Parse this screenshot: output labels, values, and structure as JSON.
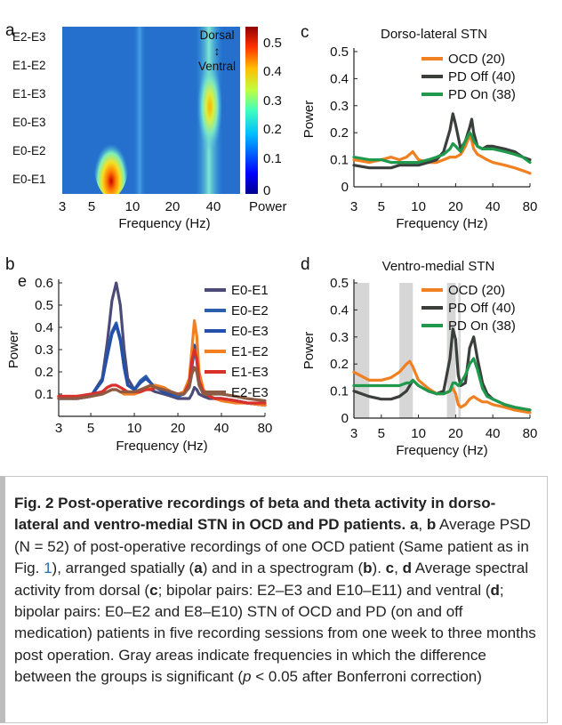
{
  "panels": {
    "a": {
      "letter": "a",
      "chart_data": {
        "type": "heatmap",
        "rows": [
          "E2-E3",
          "E1-E2",
          "E1-E3",
          "E0-E3",
          "E0-E2",
          "E0-E1"
        ],
        "row_values_at_peaks": {
          "theta_7Hz": [
            0.05,
            0.05,
            0.08,
            0.22,
            0.42,
            0.6
          ],
          "beta_27Hz": [
            0.2,
            0.28,
            0.45,
            0.2,
            0.15,
            0.12
          ]
        },
        "xlabel": "Frequency (Hz)",
        "xticks": [
          "3",
          "5",
          "10",
          "20",
          "40"
        ],
        "x_scale": "log",
        "colorbar_ticks": [
          "0.5",
          "0.4",
          "0.3",
          "0.2",
          "0.1",
          "0"
        ],
        "colorbar_label": "Power",
        "colorbar_range": [
          0,
          0.58
        ],
        "annotation_top": "Dorsal",
        "annotation_arrow": "↕",
        "annotation_bottom": "Ventral"
      }
    },
    "b": {
      "letter": "b",
      "extra_label": "e",
      "chart_data": {
        "type": "line",
        "x_scale": "log",
        "xlim": [
          3,
          80
        ],
        "ylim": [
          0,
          0.6
        ],
        "xlabel": "Frequency (Hz)",
        "ylabel": "Power",
        "xticks": [
          "3",
          "5",
          "10",
          "20",
          "40",
          "80"
        ],
        "yticks": [
          "0.1",
          "0.2",
          "0.3",
          "0.4",
          "0.5",
          "0.6"
        ],
        "x": [
          3,
          4,
          5,
          6,
          6.5,
          7,
          7.5,
          8,
          8.5,
          9,
          10,
          11,
          12,
          13,
          14,
          16,
          18,
          20,
          22,
          24,
          25,
          26,
          27,
          28,
          30,
          33,
          36,
          40,
          50,
          60,
          80
        ],
        "series": [
          {
            "name": "E0-E1",
            "color": "#4b4a78",
            "values": [
              0.09,
              0.08,
              0.09,
              0.17,
              0.33,
              0.52,
              0.6,
              0.5,
              0.3,
              0.17,
              0.12,
              0.11,
              0.13,
              0.12,
              0.11,
              0.1,
              0.09,
              0.08,
              0.08,
              0.08,
              0.1,
              0.13,
              0.12,
              0.1,
              0.09,
              0.08,
              0.08,
              0.08,
              0.07,
              0.06,
              0.05
            ]
          },
          {
            "name": "E0-E2",
            "color": "#2b5fae",
            "values": [
              0.08,
              0.08,
              0.09,
              0.16,
              0.28,
              0.38,
              0.42,
              0.35,
              0.22,
              0.14,
              0.12,
              0.16,
              0.18,
              0.15,
              0.13,
              0.11,
              0.1,
              0.09,
              0.1,
              0.14,
              0.22,
              0.3,
              0.25,
              0.16,
              0.11,
              0.09,
              0.08,
              0.08,
              0.07,
              0.06,
              0.05
            ]
          },
          {
            "name": "E0-E3",
            "color": "#2350a8",
            "values": [
              0.08,
              0.08,
              0.09,
              0.16,
              0.27,
              0.37,
              0.41,
              0.34,
              0.22,
              0.14,
              0.12,
              0.15,
              0.17,
              0.15,
              0.13,
              0.11,
              0.1,
              0.1,
              0.1,
              0.16,
              0.26,
              0.32,
              0.27,
              0.17,
              0.11,
              0.09,
              0.08,
              0.08,
              0.07,
              0.06,
              0.05
            ]
          },
          {
            "name": "E1-E2",
            "color": "#f08021",
            "values": [
              0.09,
              0.09,
              0.09,
              0.1,
              0.11,
              0.12,
              0.12,
              0.11,
              0.1,
              0.1,
              0.1,
              0.11,
              0.12,
              0.13,
              0.14,
              0.13,
              0.11,
              0.1,
              0.11,
              0.17,
              0.3,
              0.43,
              0.36,
              0.2,
              0.12,
              0.09,
              0.08,
              0.07,
              0.06,
              0.06,
              0.05
            ]
          },
          {
            "name": "E1-E3",
            "color": "#d9302b",
            "values": [
              0.09,
              0.09,
              0.1,
              0.11,
              0.13,
              0.14,
              0.14,
              0.13,
              0.12,
              0.11,
              0.11,
              0.11,
              0.12,
              0.12,
              0.13,
              0.12,
              0.11,
              0.1,
              0.1,
              0.15,
              0.25,
              0.3,
              0.26,
              0.16,
              0.11,
              0.09,
              0.08,
              0.08,
              0.07,
              0.06,
              0.06
            ]
          },
          {
            "name": "E2-E3",
            "color": "#8d5a44",
            "values": [
              0.08,
              0.08,
              0.09,
              0.1,
              0.11,
              0.12,
              0.12,
              0.11,
              0.11,
              0.11,
              0.11,
              0.12,
              0.13,
              0.14,
              0.13,
              0.12,
              0.11,
              0.1,
              0.1,
              0.13,
              0.19,
              0.22,
              0.2,
              0.14,
              0.1,
              0.1,
              0.1,
              0.1,
              0.09,
              0.08,
              0.07
            ]
          }
        ]
      }
    },
    "c": {
      "letter": "c",
      "title": "Dorso-lateral STN",
      "chart_data": {
        "type": "line",
        "title": "Dorso-lateral STN",
        "x_scale": "log",
        "xlim": [
          3,
          80
        ],
        "ylim": [
          0,
          0.5
        ],
        "xlabel": "Frequency (Hz)",
        "ylabel": "Power",
        "xticks": [
          "3",
          "5",
          "10",
          "20",
          "40",
          "80"
        ],
        "yticks": [
          "0",
          "0.1",
          "0.2",
          "0.3",
          "0.4",
          "0.5"
        ],
        "x": [
          3,
          4,
          5,
          6,
          7,
          8,
          9,
          10,
          12,
          14,
          16,
          18,
          19,
          20,
          22,
          24,
          26,
          27,
          28,
          30,
          33,
          36,
          40,
          50,
          60,
          70,
          80
        ],
        "series": [
          {
            "name": "OCD (20)",
            "color": "#f08021",
            "values": [
              0.1,
              0.09,
              0.1,
              0.11,
              0.1,
              0.11,
              0.13,
              0.1,
              0.09,
              0.09,
              0.1,
              0.11,
              0.11,
              0.11,
              0.12,
              0.15,
              0.19,
              0.17,
              0.14,
              0.12,
              0.11,
              0.1,
              0.09,
              0.08,
              0.07,
              0.06,
              0.05
            ]
          },
          {
            "name": "PD Off (40)",
            "color": "#3a3f3c",
            "values": [
              0.08,
              0.07,
              0.07,
              0.07,
              0.08,
              0.08,
              0.08,
              0.08,
              0.09,
              0.1,
              0.13,
              0.21,
              0.27,
              0.23,
              0.14,
              0.17,
              0.22,
              0.25,
              0.2,
              0.15,
              0.14,
              0.15,
              0.15,
              0.14,
              0.13,
              0.11,
              0.1
            ]
          },
          {
            "name": "PD On (38)",
            "color": "#1f9a4d",
            "values": [
              0.11,
              0.1,
              0.1,
              0.09,
              0.09,
              0.09,
              0.09,
              0.09,
              0.1,
              0.11,
              0.12,
              0.14,
              0.16,
              0.15,
              0.13,
              0.17,
              0.2,
              0.19,
              0.17,
              0.15,
              0.14,
              0.14,
              0.14,
              0.13,
              0.12,
              0.11,
              0.09
            ]
          }
        ]
      }
    },
    "d": {
      "letter": "d",
      "title": "Ventro-medial STN",
      "chart_data": {
        "type": "line",
        "title": "Ventro-medial STN",
        "x_scale": "log",
        "xlim": [
          3,
          80
        ],
        "ylim": [
          0,
          0.5
        ],
        "xlabel": "Frequency (Hz)",
        "ylabel": "Power",
        "xticks": [
          "3",
          "5",
          "10",
          "20",
          "40",
          "80"
        ],
        "yticks": [
          "0",
          "0.1",
          "0.2",
          "0.3",
          "0.4",
          "0.5"
        ],
        "x": [
          3,
          4,
          5,
          6,
          7,
          8,
          8.5,
          9,
          10,
          12,
          14,
          16,
          18,
          19,
          20,
          21,
          22,
          24,
          26,
          28,
          30,
          33,
          36,
          40,
          50,
          60,
          80
        ],
        "series": [
          {
            "name": "OCD (20)",
            "color": "#f08021",
            "values": [
              0.17,
              0.14,
              0.14,
              0.15,
              0.17,
              0.2,
              0.21,
              0.19,
              0.14,
              0.11,
              0.09,
              0.09,
              0.1,
              0.11,
              0.09,
              0.05,
              0.04,
              0.05,
              0.07,
              0.08,
              0.07,
              0.06,
              0.06,
              0.05,
              0.04,
              0.03,
              0.02
            ]
          },
          {
            "name": "PD Off (40)",
            "color": "#3a3f3c",
            "values": [
              0.1,
              0.08,
              0.07,
              0.07,
              0.08,
              0.1,
              0.12,
              0.14,
              0.12,
              0.1,
              0.09,
              0.1,
              0.22,
              0.33,
              0.29,
              0.16,
              0.12,
              0.13,
              0.26,
              0.3,
              0.22,
              0.13,
              0.09,
              0.07,
              0.05,
              0.04,
              0.03
            ]
          },
          {
            "name": "PD On (38)",
            "color": "#1f9a4d",
            "values": [
              0.12,
              0.12,
              0.12,
              0.12,
              0.12,
              0.13,
              0.13,
              0.14,
              0.12,
              0.1,
              0.09,
              0.09,
              0.1,
              0.13,
              0.13,
              0.12,
              0.13,
              0.16,
              0.2,
              0.22,
              0.18,
              0.11,
              0.08,
              0.07,
              0.05,
              0.04,
              0.03
            ]
          }
        ],
        "significant_regions_hz": [
          [
            3,
            4
          ],
          [
            7,
            9
          ],
          [
            17,
            20
          ],
          [
            21,
            22
          ]
        ]
      }
    }
  },
  "caption": {
    "title": "Fig. 2 Post-operative recordings of beta and theta activity in dorso-lateral and ventro-medial STN in OCD and PD patients.",
    "body_html": "<b>a</b>, <b>b</b> Average PSD (N = 52) of post-operative recordings of one OCD patient (Same patient as in Fig. <span style=\"color:#2b6cb0\">1</span>), arranged spatially (<b>a</b>) and in a spectrogram (<b>b</b>). <b>c</b>, <b>d</b> Average spectral activity from dorsal (<b>c</b>; bipolar pairs: E2–E3 and E10–E11) and ventral (<b>d</b>; bipolar pairs: E0–E2 and E8–E10) STN of OCD and PD (on and off medication) patients in five recording sessions from one week to three months post operation. Gray areas indicate frequencies in which the difference between the groups is significant (<i>p</i> &lt; 0.05 after Bonferroni correction)"
  }
}
